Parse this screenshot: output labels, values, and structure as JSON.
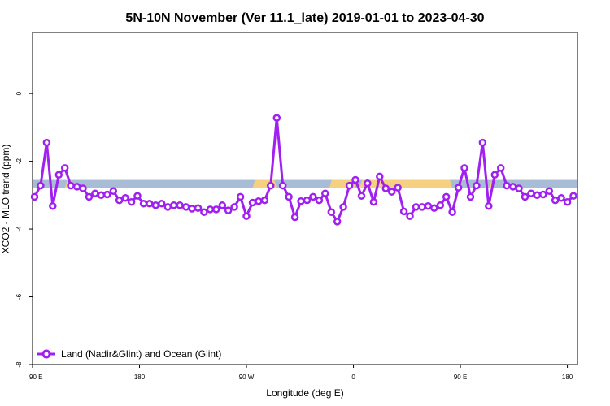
{
  "chart_data": {
    "type": "line",
    "title": "5N-10N November (Ver 11.1_late)   2019-01-01 to 2023-04-30",
    "xlabel": "Longitude (deg E)",
    "ylabel": "XCO2 - MLO trend (ppm)",
    "xlim": [
      -90,
      180
    ],
    "ylim": [
      -8,
      1.8
    ],
    "xticks": [
      {
        "value": -90,
        "label": "90 E"
      },
      {
        "value": -37,
        "label": "180"
      },
      {
        "value": 16,
        "label": "90 W"
      },
      {
        "value": 69,
        "label": "0"
      },
      {
        "value": 122,
        "label": "90 E"
      },
      {
        "value": 175,
        "label": "180"
      }
    ],
    "yticks": [
      {
        "value": 0,
        "label": "0"
      },
      {
        "value": -2,
        "label": "-2"
      },
      {
        "value": -4,
        "label": "-4"
      },
      {
        "value": -6,
        "label": "-6"
      },
      {
        "value": -8,
        "label": "-8"
      }
    ],
    "grid": false,
    "legend_position": "bottom-left",
    "background_band": {
      "y_range": [
        -2.55,
        -2.8
      ],
      "colors": {
        "ocean": "#a8bcd6",
        "land": "#f5d080"
      },
      "land_segments": [
        [
          -74,
          -70
        ],
        [
          19,
          31
        ],
        [
          57,
          70
        ],
        [
          72,
          118
        ],
        [
          136,
          138
        ]
      ]
    },
    "series": [
      {
        "name": "Land (Nadir&Glint) and Ocean (Glint)",
        "color": "#a020f0",
        "x": [
          -89,
          -86,
          -83,
          -80,
          -77,
          -74,
          -71,
          -68,
          -65,
          -62,
          -59,
          -56,
          -53,
          -50,
          -47,
          -44,
          -41,
          -38,
          -35,
          -32,
          -29,
          -26,
          -23,
          -20,
          -17,
          -14,
          -11,
          -8,
          -5,
          -2,
          1,
          4,
          7,
          10,
          13,
          16,
          19,
          22,
          25,
          28,
          31,
          34,
          37,
          40,
          43,
          46,
          49,
          52,
          55,
          58,
          61,
          64,
          67,
          70,
          73,
          76,
          79,
          82,
          85,
          88,
          91,
          94,
          97,
          100,
          103,
          106,
          109,
          112,
          115,
          118,
          121,
          124,
          127,
          130,
          133,
          136,
          139,
          142,
          145,
          148,
          151,
          154,
          157,
          160,
          163,
          166,
          169,
          172,
          175,
          178
        ],
        "y": [
          -3.05,
          -2.72,
          -1.45,
          -3.32,
          -2.4,
          -2.2,
          -2.72,
          -2.75,
          -2.8,
          -3.05,
          -2.95,
          -3.0,
          -2.98,
          -2.88,
          -3.15,
          -3.08,
          -3.2,
          -3.02,
          -3.25,
          -3.25,
          -3.3,
          -3.25,
          -3.35,
          -3.3,
          -3.3,
          -3.35,
          -3.4,
          -3.38,
          -3.5,
          -3.42,
          -3.42,
          -3.3,
          -3.45,
          -3.35,
          -3.05,
          -3.62,
          -3.22,
          -3.18,
          -3.15,
          -2.72,
          -0.72,
          -2.72,
          -3.05,
          -3.65,
          -3.18,
          -3.15,
          -3.05,
          -3.15,
          -2.95,
          -3.5,
          -3.78,
          -3.35,
          -2.72,
          -2.55,
          -3.02,
          -2.65,
          -3.2,
          -2.45,
          -2.8,
          -2.9,
          -2.78,
          -3.48,
          -3.62,
          -3.35,
          -3.35,
          -3.32,
          -3.38,
          -3.3,
          -3.05,
          -3.5,
          -2.78,
          -2.2,
          -3.05,
          -2.72,
          -1.45,
          -3.32,
          -2.4,
          -2.2,
          -2.72,
          -2.75,
          -2.8,
          -3.05,
          -2.95,
          -3.0,
          -2.98,
          -2.88,
          -3.15,
          -3.08,
          -3.2,
          -3.02
        ]
      }
    ]
  }
}
